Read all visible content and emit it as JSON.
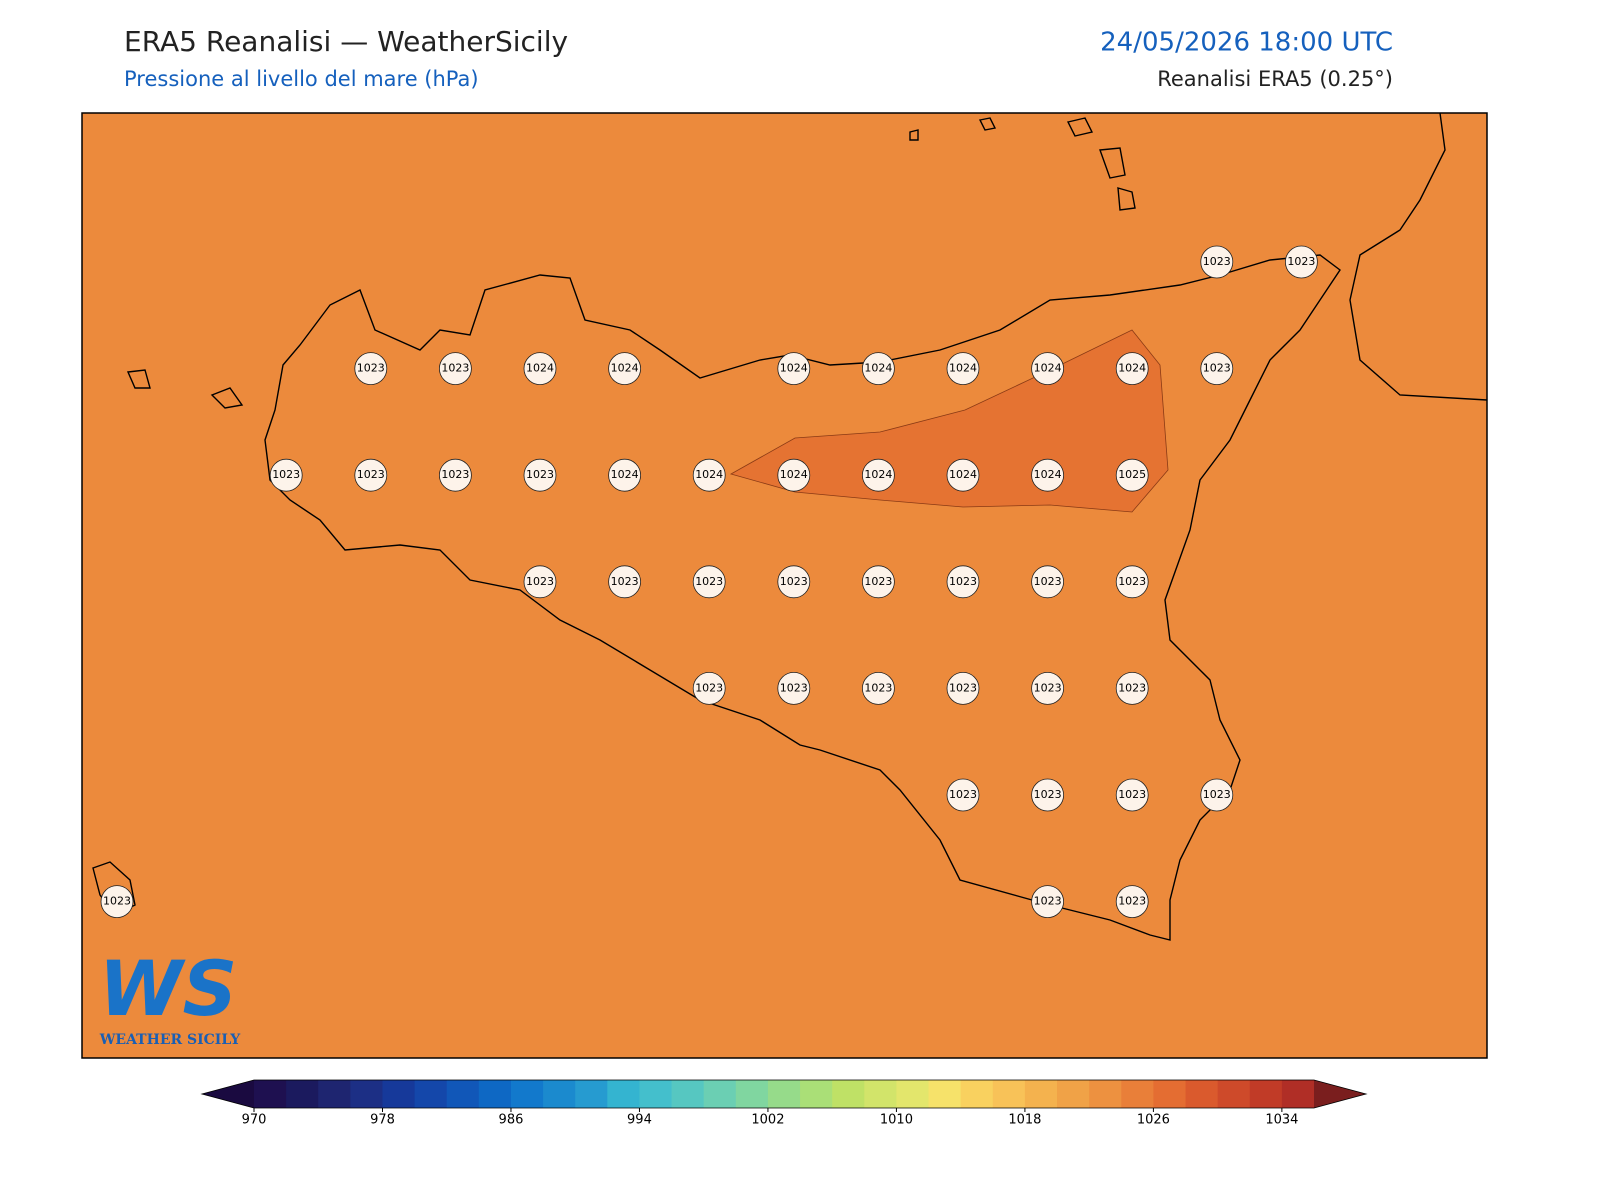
{
  "header": {
    "title": "ERA5 Reanalisi — WeatherSicily",
    "subtitle": "Pressione al livello del mare (hPa)",
    "date": "24/05/2026 18:00 UTC",
    "source": "Reanalisi ERA5 (0.25°)"
  },
  "map": {
    "background_color": "#ec8a3c",
    "contour_color": "#e57332",
    "grid": [
      [
        null,
        null,
        null,
        null,
        null,
        null,
        null,
        null,
        null,
        null,
        null,
        null,
        null,
        1023,
        1023
      ],
      [
        null,
        null,
        null,
        1023,
        1023,
        1024,
        1024,
        null,
        1024,
        1024,
        1024,
        1024,
        1024,
        1023,
        null
      ],
      [
        null,
        null,
        1023,
        1023,
        1023,
        1023,
        1024,
        1024,
        1024,
        1024,
        1024,
        1024,
        1025,
        null,
        null
      ],
      [
        null,
        null,
        null,
        null,
        null,
        1023,
        1023,
        1023,
        1023,
        1023,
        1023,
        1023,
        1023,
        null,
        null
      ],
      [
        null,
        null,
        null,
        null,
        null,
        null,
        null,
        1023,
        1023,
        1023,
        1023,
        1023,
        1023,
        null,
        null
      ],
      [
        null,
        null,
        null,
        null,
        null,
        null,
        null,
        null,
        null,
        null,
        1023,
        1023,
        1023,
        1023,
        null
      ],
      [
        1023,
        null,
        null,
        null,
        null,
        null,
        null,
        null,
        null,
        null,
        null,
        1023,
        1023,
        null,
        null
      ]
    ]
  },
  "logo": {
    "mark": "WS",
    "text": "WEATHER SICILY"
  },
  "colorbar": {
    "lim": [
      970,
      1036
    ],
    "ticks": [
      970,
      978,
      986,
      994,
      1002,
      1010,
      1018,
      1026,
      1034
    ],
    "extend_colors": [
      "#1a0a40",
      "#7a1e1e"
    ],
    "colors": [
      "#1e1050",
      "#1b1a5e",
      "#1e2570",
      "#1c2f85",
      "#16399a",
      "#1447aa",
      "#1157b8",
      "#0e68c4",
      "#1279cc",
      "#1b8ace",
      "#269bd0",
      "#34b4d0",
      "#44bfcc",
      "#56c7c1",
      "#6bcfb3",
      "#80d6a0",
      "#96db8a",
      "#aadf77",
      "#bfe166",
      "#d2e46a",
      "#e3e66c",
      "#f6e26a",
      "#f9d15f",
      "#f8c258",
      "#f4b24e",
      "#f0a247",
      "#ed9140",
      "#e97f39",
      "#e46d32",
      "#da5a2d",
      "#ce4a2a",
      "#c13b27",
      "#b02e26"
    ]
  }
}
